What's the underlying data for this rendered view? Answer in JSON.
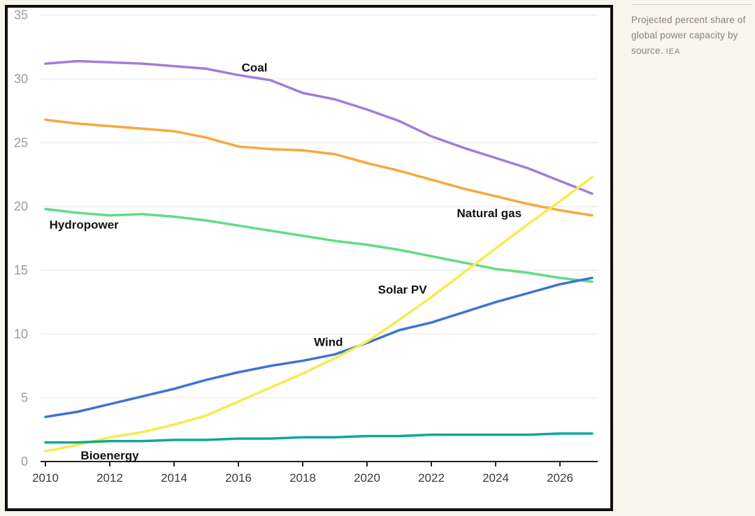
{
  "caption": {
    "text": "Projected percent share of global power capacity by source.",
    "source": "IEA"
  },
  "colors": {
    "page_bg": "#F8F5EC",
    "card_bg": "#FFFFFF",
    "card_border": "#0E0E0E",
    "grid": "#ECECEC",
    "axis": "#222222",
    "xtick_label": "#3A3A3A",
    "ytick_label": "#9B9B9B",
    "annotation": "#111111",
    "caption_text": "#8B8272",
    "caption_rule": "#DCD7C6"
  },
  "chart_data": {
    "type": "line",
    "title": "",
    "xlabel": "",
    "ylabel": "",
    "x": [
      2010,
      2011,
      2012,
      2013,
      2014,
      2015,
      2016,
      2017,
      2018,
      2019,
      2020,
      2021,
      2022,
      2023,
      2024,
      2025,
      2026,
      2027
    ],
    "xlim": [
      2010,
      2027
    ],
    "ylim": [
      0,
      35
    ],
    "xticks": [
      2010,
      2012,
      2014,
      2016,
      2018,
      2020,
      2022,
      2024,
      2026
    ],
    "yticks": [
      0,
      5,
      10,
      15,
      20,
      25,
      30,
      35
    ],
    "grid": true,
    "legend_position": "inline-labels",
    "series": [
      {
        "name": "Coal",
        "color": "#9F7EDB",
        "values": [
          31.2,
          31.4,
          31.3,
          31.2,
          31.0,
          30.8,
          30.3,
          29.9,
          28.9,
          28.4,
          27.6,
          26.7,
          25.5,
          24.6,
          23.8,
          23.0,
          22.0,
          21.0
        ]
      },
      {
        "name": "Natural gas",
        "color": "#F6A83C",
        "values": [
          26.8,
          26.5,
          26.3,
          26.1,
          25.9,
          25.4,
          24.7,
          24.5,
          24.4,
          24.1,
          23.4,
          22.8,
          22.1,
          21.4,
          20.8,
          20.2,
          19.7,
          19.3
        ]
      },
      {
        "name": "Hydropower",
        "color": "#63DB84",
        "values": [
          19.8,
          19.5,
          19.3,
          19.4,
          19.2,
          18.9,
          18.5,
          18.1,
          17.7,
          17.3,
          17.0,
          16.6,
          16.1,
          15.6,
          15.1,
          14.8,
          14.4,
          14.1
        ]
      },
      {
        "name": "Wind",
        "color": "#3D74D1",
        "values": [
          3.5,
          3.9,
          4.5,
          5.1,
          5.7,
          6.4,
          7.0,
          7.5,
          7.9,
          8.4,
          9.3,
          10.3,
          10.9,
          11.7,
          12.5,
          13.2,
          13.9,
          14.4
        ]
      },
      {
        "name": "Solar PV",
        "color": "#F9E94E",
        "values": [
          0.8,
          1.3,
          1.9,
          2.3,
          2.9,
          3.6,
          4.7,
          5.8,
          6.9,
          8.1,
          9.4,
          11.1,
          12.9,
          14.8,
          16.7,
          18.6,
          20.4,
          22.3
        ]
      },
      {
        "name": "Bioenergy",
        "color": "#11A79B",
        "values": [
          1.5,
          1.5,
          1.6,
          1.6,
          1.7,
          1.7,
          1.8,
          1.8,
          1.9,
          1.9,
          2.0,
          2.0,
          2.1,
          2.1,
          2.1,
          2.1,
          2.2,
          2.2
        ]
      }
    ],
    "annotations": [
      {
        "text": "Coal",
        "year": 2016.5,
        "value": 30.9
      },
      {
        "text": "Natural gas",
        "year": 2023.8,
        "value": 19.5
      },
      {
        "text": "Hydropower",
        "year": 2011.2,
        "value": 18.6
      },
      {
        "text": "Solar PV",
        "year": 2021.1,
        "value": 13.5
      },
      {
        "text": "Wind",
        "year": 2018.8,
        "value": 9.4
      },
      {
        "text": "Bioenergy",
        "year": 2012.0,
        "value": 0.5
      }
    ]
  }
}
